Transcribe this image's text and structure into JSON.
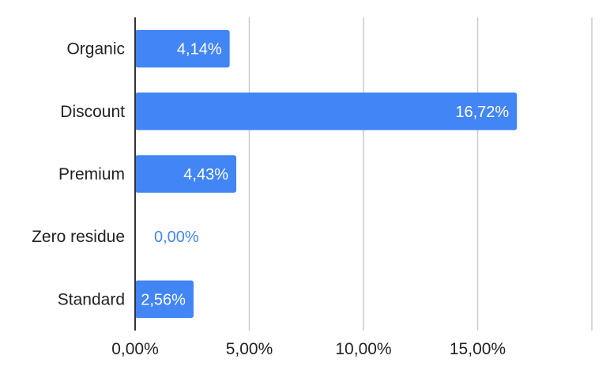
{
  "chart_data": {
    "type": "bar",
    "orientation": "horizontal",
    "categories": [
      "Organic",
      "Discount",
      "Premium",
      "Zero residue",
      "Standard"
    ],
    "values": [
      4.14,
      16.72,
      4.43,
      0.0,
      2.56
    ],
    "value_labels": [
      "4,14%",
      "16,72%",
      "4,43%",
      "0,00%",
      "2,56%"
    ],
    "x_ticks": [
      0,
      5,
      10,
      15,
      20
    ],
    "x_tick_labels": [
      "0,00%",
      "5,00%",
      "10,00%",
      "15,00%",
      ""
    ],
    "xlim": [
      0,
      20
    ],
    "grid": true,
    "legend": "none",
    "title": "",
    "xlabel": "",
    "ylabel": "",
    "colors": {
      "bar": "#4285f4",
      "label_inside": "#ffffff",
      "label_outside": "#4285f4",
      "grid": "#cccccc",
      "axis": "#333333"
    }
  }
}
